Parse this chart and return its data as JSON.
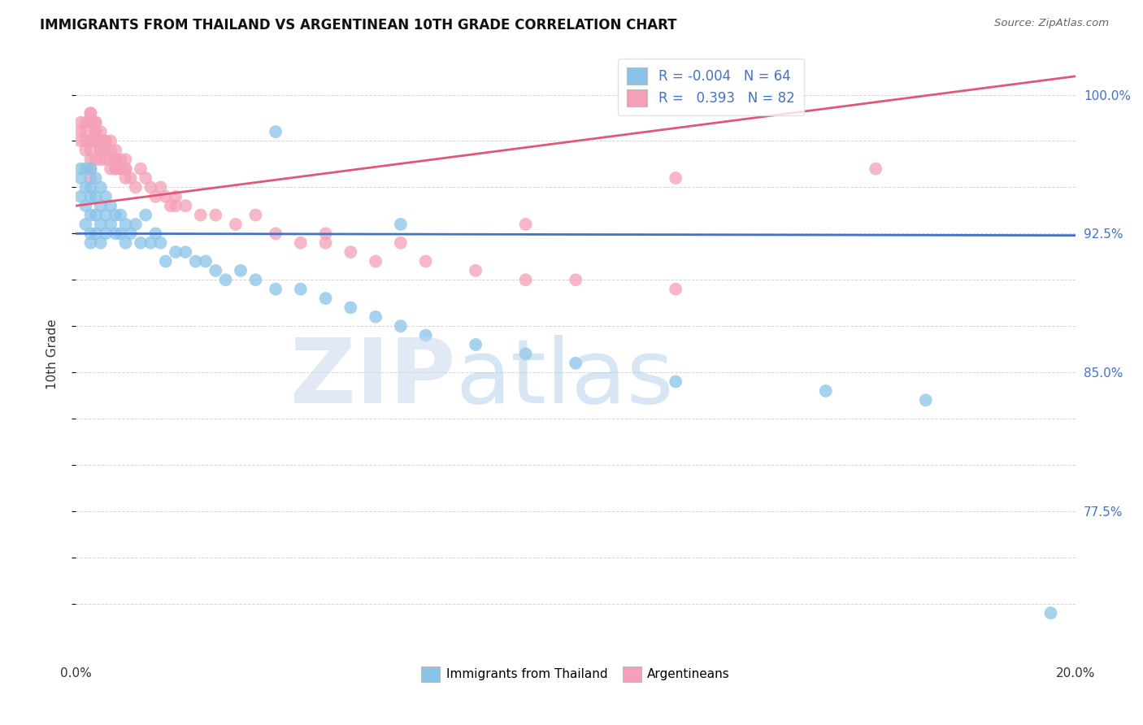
{
  "title": "IMMIGRANTS FROM THAILAND VS ARGENTINEAN 10TH GRADE CORRELATION CHART",
  "source": "Source: ZipAtlas.com",
  "ylabel": "10th Grade",
  "y_tick_vals": [
    0.725,
    0.75,
    0.775,
    0.8,
    0.825,
    0.85,
    0.875,
    0.9,
    0.925,
    0.95,
    0.975,
    1.0
  ],
  "y_tick_labels": [
    "",
    "",
    "77.5%",
    "",
    "",
    "85.0%",
    "",
    "",
    "92.5%",
    "",
    "",
    "100.0%"
  ],
  "xlim": [
    0.0,
    0.2
  ],
  "ylim": [
    0.695,
    1.025
  ],
  "blue_R": "-0.004",
  "blue_N": "64",
  "pink_R": "0.393",
  "pink_N": "82",
  "blue_color": "#89C4E8",
  "pink_color": "#F4A0B8",
  "blue_line_color": "#4472C4",
  "pink_line_color": "#E05878",
  "blue_line_x0": 0.0,
  "blue_line_x1": 0.2,
  "blue_line_y0": 0.925,
  "blue_line_y1": 0.924,
  "pink_line_x0": 0.0,
  "pink_line_x1": 0.2,
  "pink_line_y0": 0.94,
  "pink_line_y1": 1.01,
  "blue_scatter_x": [
    0.001,
    0.001,
    0.001,
    0.002,
    0.002,
    0.002,
    0.002,
    0.003,
    0.003,
    0.003,
    0.003,
    0.003,
    0.003,
    0.004,
    0.004,
    0.004,
    0.004,
    0.005,
    0.005,
    0.005,
    0.005,
    0.006,
    0.006,
    0.006,
    0.007,
    0.007,
    0.008,
    0.008,
    0.009,
    0.009,
    0.01,
    0.01,
    0.011,
    0.012,
    0.013,
    0.014,
    0.015,
    0.016,
    0.017,
    0.018,
    0.02,
    0.022,
    0.024,
    0.026,
    0.028,
    0.03,
    0.033,
    0.036,
    0.04,
    0.045,
    0.05,
    0.055,
    0.06,
    0.065,
    0.07,
    0.08,
    0.09,
    0.1,
    0.12,
    0.15,
    0.17,
    0.195,
    0.04,
    0.065
  ],
  "blue_scatter_y": [
    0.96,
    0.955,
    0.945,
    0.96,
    0.95,
    0.94,
    0.93,
    0.96,
    0.95,
    0.945,
    0.935,
    0.925,
    0.92,
    0.955,
    0.945,
    0.935,
    0.925,
    0.95,
    0.94,
    0.93,
    0.92,
    0.945,
    0.935,
    0.925,
    0.94,
    0.93,
    0.935,
    0.925,
    0.935,
    0.925,
    0.93,
    0.92,
    0.925,
    0.93,
    0.92,
    0.935,
    0.92,
    0.925,
    0.92,
    0.91,
    0.915,
    0.915,
    0.91,
    0.91,
    0.905,
    0.9,
    0.905,
    0.9,
    0.895,
    0.895,
    0.89,
    0.885,
    0.88,
    0.875,
    0.87,
    0.865,
    0.86,
    0.855,
    0.845,
    0.84,
    0.835,
    0.72,
    0.98,
    0.93
  ],
  "pink_scatter_x": [
    0.001,
    0.001,
    0.001,
    0.002,
    0.002,
    0.002,
    0.002,
    0.003,
    0.003,
    0.003,
    0.003,
    0.003,
    0.003,
    0.003,
    0.004,
    0.004,
    0.004,
    0.004,
    0.005,
    0.005,
    0.005,
    0.006,
    0.006,
    0.006,
    0.007,
    0.007,
    0.007,
    0.008,
    0.008,
    0.008,
    0.009,
    0.009,
    0.01,
    0.01,
    0.01,
    0.011,
    0.012,
    0.013,
    0.014,
    0.015,
    0.016,
    0.017,
    0.018,
    0.019,
    0.02,
    0.022,
    0.025,
    0.028,
    0.032,
    0.036,
    0.04,
    0.045,
    0.05,
    0.055,
    0.06,
    0.065,
    0.07,
    0.08,
    0.09,
    0.1,
    0.12,
    0.003,
    0.004,
    0.005,
    0.005,
    0.006,
    0.007,
    0.008,
    0.009,
    0.01,
    0.003,
    0.004,
    0.003,
    0.003,
    0.004,
    0.006,
    0.008,
    0.02,
    0.05,
    0.09,
    0.12,
    0.16
  ],
  "pink_scatter_y": [
    0.985,
    0.98,
    0.975,
    0.985,
    0.98,
    0.975,
    0.97,
    0.99,
    0.985,
    0.975,
    0.97,
    0.965,
    0.96,
    0.955,
    0.985,
    0.98,
    0.975,
    0.965,
    0.98,
    0.975,
    0.97,
    0.975,
    0.97,
    0.965,
    0.975,
    0.965,
    0.96,
    0.97,
    0.965,
    0.96,
    0.965,
    0.96,
    0.965,
    0.96,
    0.955,
    0.955,
    0.95,
    0.96,
    0.955,
    0.95,
    0.945,
    0.95,
    0.945,
    0.94,
    0.945,
    0.94,
    0.935,
    0.935,
    0.93,
    0.935,
    0.925,
    0.92,
    0.92,
    0.915,
    0.91,
    0.92,
    0.91,
    0.905,
    0.9,
    0.9,
    0.895,
    0.975,
    0.975,
    0.97,
    0.965,
    0.975,
    0.97,
    0.965,
    0.96,
    0.96,
    0.99,
    0.985,
    0.985,
    0.985,
    0.98,
    0.97,
    0.96,
    0.94,
    0.925,
    0.93,
    0.955,
    0.96
  ]
}
